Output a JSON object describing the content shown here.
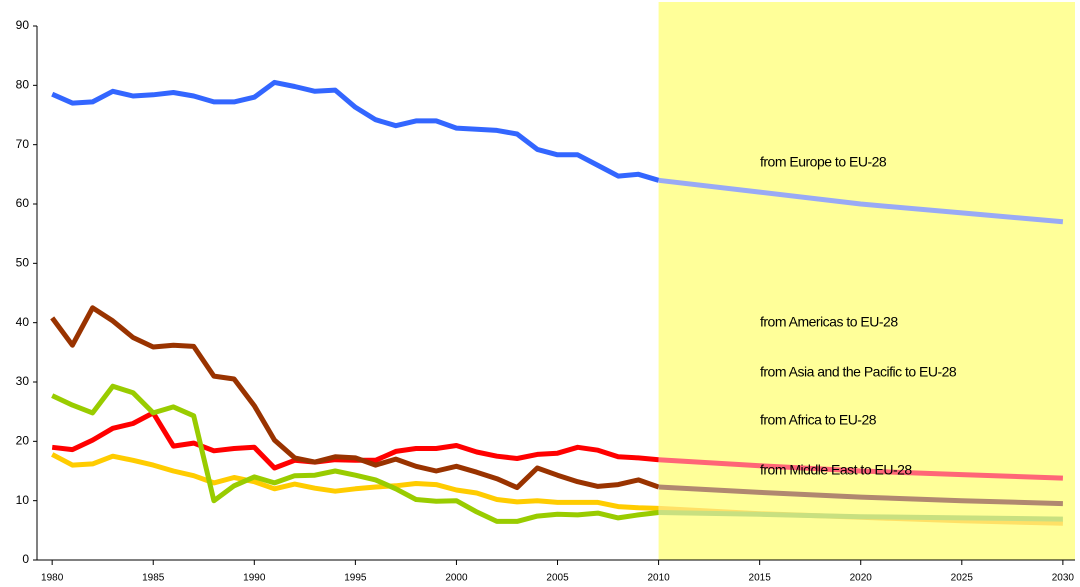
{
  "chart_data": {
    "type": "line",
    "x": [
      1980,
      1981,
      1982,
      1983,
      1984,
      1985,
      1986,
      1987,
      1988,
      1989,
      1990,
      1991,
      1992,
      1993,
      1994,
      1995,
      1996,
      1997,
      1998,
      1999,
      2000,
      2001,
      2002,
      2003,
      2004,
      2005,
      2006,
      2007,
      2008,
      2009,
      2010,
      2015,
      2020,
      2025,
      2030
    ],
    "xlim": [
      1979.25,
      2030.6
    ],
    "xticks": [
      1980,
      1985,
      1990,
      1995,
      2000,
      2005,
      2010,
      2015,
      2020,
      2025,
      2030
    ],
    "ylim": [
      0,
      90
    ],
    "yticks": [
      0,
      10,
      20,
      30,
      40,
      50,
      60,
      70,
      80,
      90
    ],
    "projection_from": 2010,
    "projection_shade": "#ffff99",
    "series": [
      {
        "name": "from Europe to EU-28",
        "color": "#3366ff",
        "projection_color": "#99aaf5",
        "label_color": "#2b35d4",
        "values": [
          78.5,
          77,
          77.2,
          79,
          78.2,
          78.4,
          78.8,
          78.2,
          77.2,
          77.2,
          78,
          80.5,
          79.8,
          79,
          79.2,
          76.3,
          74.2,
          73.2,
          74,
          74,
          72.8,
          72.6,
          72.4,
          71.8,
          69.2,
          68.3,
          68.3,
          66.5,
          64.7,
          65,
          64,
          62,
          60,
          58.5,
          57
        ]
      },
      {
        "name": "from Americas to EU-28",
        "color": "#ff0000",
        "projection_color": "#ff6677",
        "label_color": "#ff0000",
        "values": [
          19,
          18.6,
          20.2,
          22.2,
          23,
          24.8,
          19.2,
          19.7,
          18.4,
          18.8,
          19,
          15.5,
          16.8,
          16.5,
          16.9,
          16.8,
          16.8,
          18.3,
          18.8,
          18.8,
          19.3,
          18.2,
          17.5,
          17.1,
          17.8,
          18,
          19,
          18.5,
          17.4,
          17.2,
          16.9,
          15.9,
          15,
          14.4,
          13.8
        ]
      },
      {
        "name": "from Asia and the Pacific to EU-28",
        "color": "#ffcc00",
        "projection_color": "#ffe066",
        "label_color": "#ffc000",
        "values": [
          17.8,
          16,
          16.2,
          17.5,
          16.8,
          16,
          15,
          14.2,
          13,
          13.9,
          13.2,
          12,
          12.8,
          12.1,
          11.6,
          12,
          12.3,
          12.5,
          12.9,
          12.7,
          11.8,
          11.3,
          10.2,
          9.8,
          10,
          9.7,
          9.7,
          9.7,
          9,
          8.8,
          8.7,
          7.8,
          7.2,
          6.6,
          6.2
        ]
      },
      {
        "name": "from Africa to EU-28",
        "color": "#993300",
        "projection_color": "#b08870",
        "label_color": "#993300",
        "values": [
          40.8,
          36.2,
          42.5,
          40.3,
          37.5,
          35.9,
          36.2,
          36,
          31,
          30.5,
          26,
          20.2,
          17.2,
          16.5,
          17.4,
          17.2,
          16,
          17,
          15.8,
          15,
          15.8,
          14.8,
          13.7,
          12.2,
          15.5,
          14.3,
          13.2,
          12.4,
          12.7,
          13.5,
          12.3,
          11.4,
          10.6,
          10,
          9.5
        ]
      },
      {
        "name": "from Middle East to EU-28",
        "color": "#99cc00",
        "projection_color": "#c8e080",
        "label_color": "#99aa33",
        "values": [
          27.7,
          26.1,
          24.8,
          29.3,
          28.2,
          24.8,
          25.8,
          24.3,
          10,
          12.5,
          14,
          13,
          14.2,
          14.3,
          15,
          14.3,
          13.5,
          12,
          10.2,
          9.9,
          10,
          8.1,
          6.5,
          6.5,
          7.4,
          7.7,
          7.6,
          7.9,
          7.1,
          7.6,
          8,
          7.7,
          7.3,
          7.1,
          6.9
        ]
      }
    ]
  }
}
